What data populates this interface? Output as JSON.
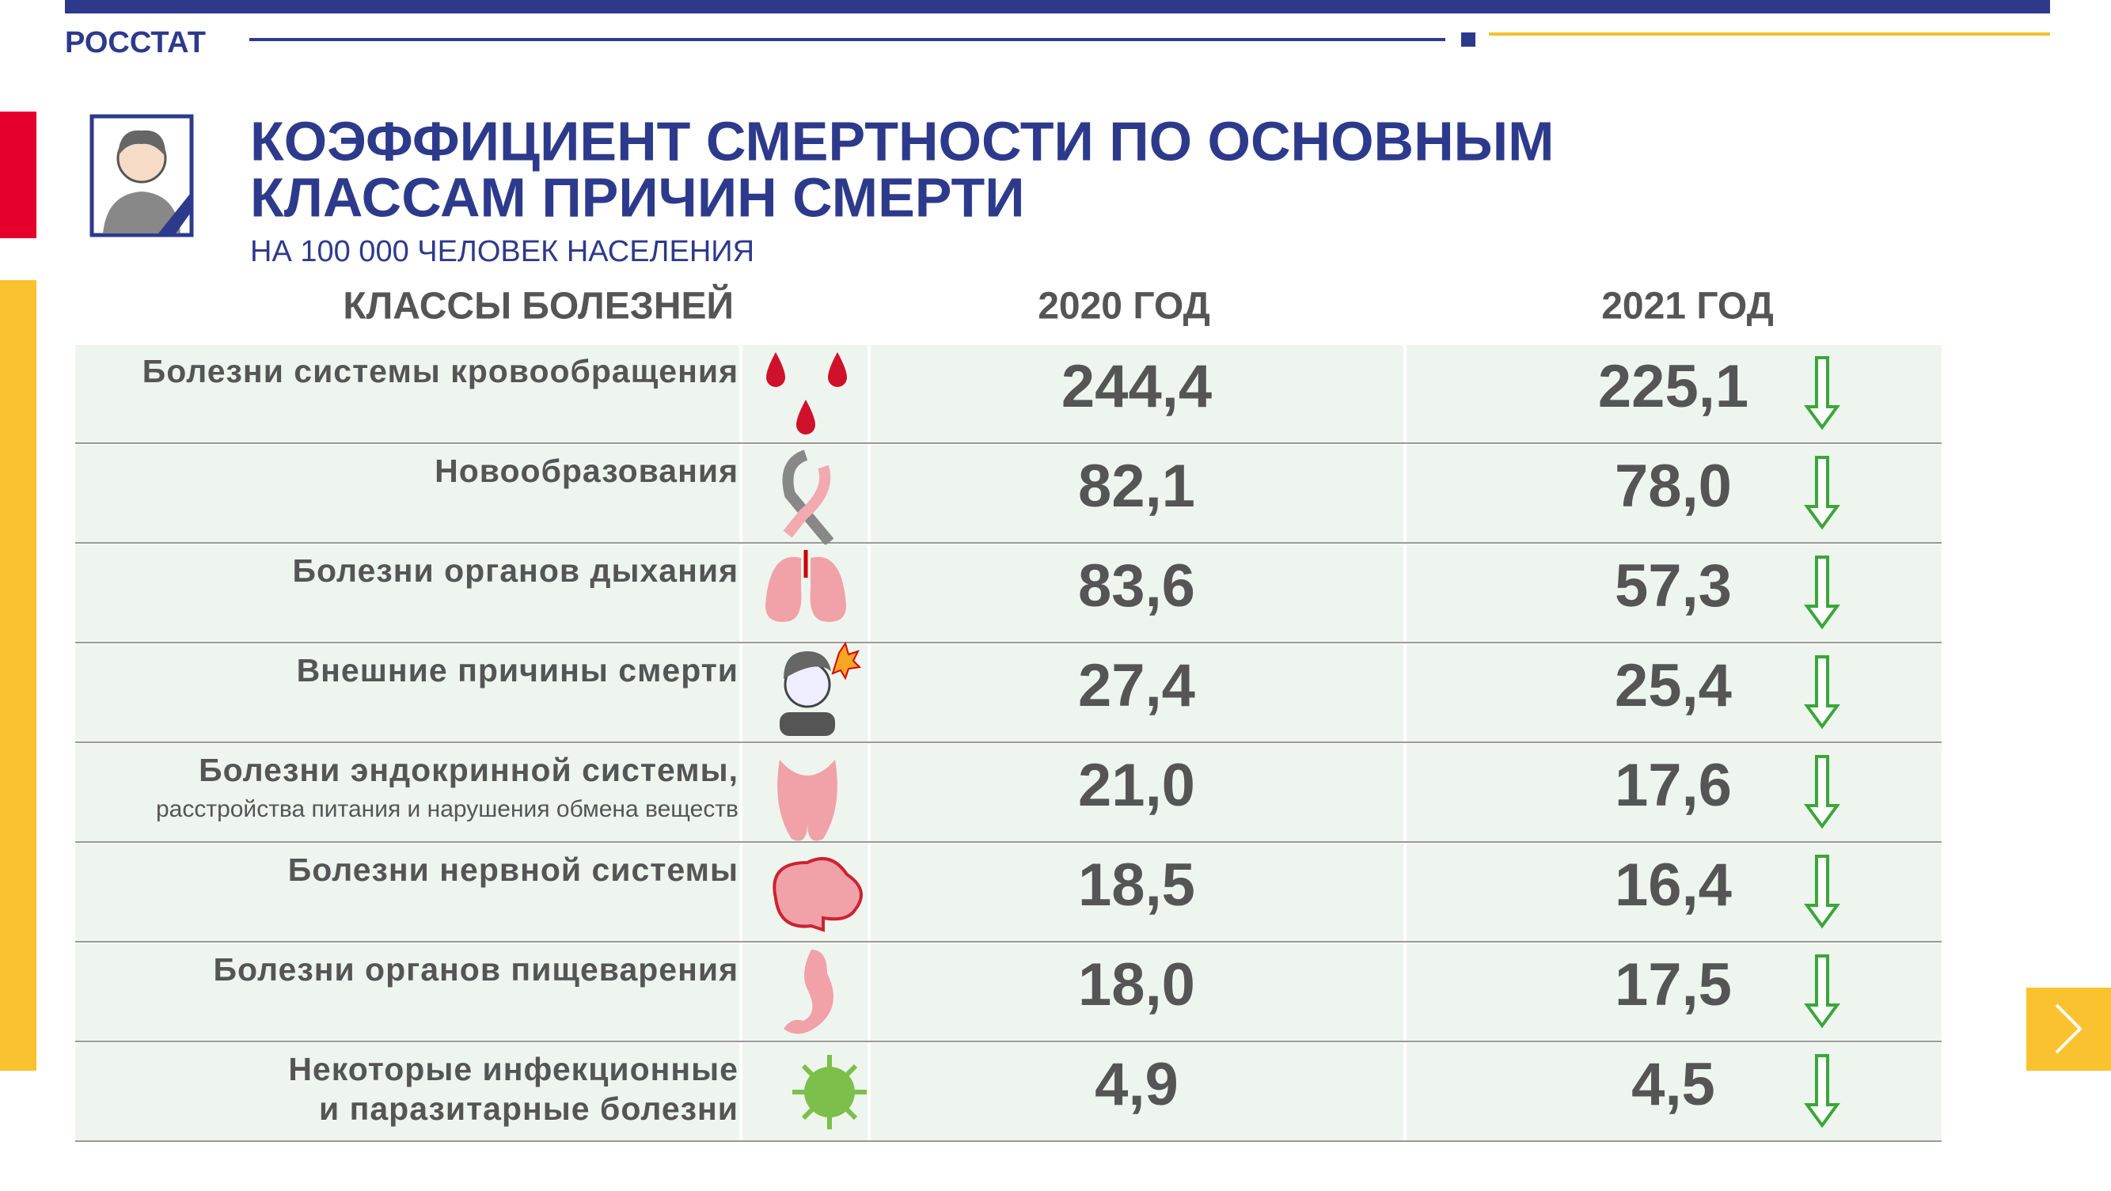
{
  "header": {
    "brand": "РОССТАТ",
    "title": [
      "КОЭФФИЦИЕНТ СМЕРТНОСТИ ПО ОСНОВНЫМ",
      "КЛАССАМ ПРИЧИН СМЕРТИ"
    ],
    "subtitle": "НА 100 000 ЧЕЛОВЕК НАСЕЛЕНИЯ"
  },
  "table": {
    "columns": [
      "КЛАССЫ БОЛЕЗНЕЙ",
      "2020 ГОД",
      "2021 ГОД"
    ],
    "rows": [
      {
        "label": [
          "Болезни системы кровообращения"
        ],
        "v2020": "244,4",
        "v2021": "225,1"
      },
      {
        "label": [
          "Новообразования"
        ],
        "v2020": "82,1",
        "v2021": "78,0"
      },
      {
        "label": [
          "Болезни органов дыхания"
        ],
        "v2020": "83,6",
        "v2021": "57,3"
      },
      {
        "label": [
          "Внешние причины смерти"
        ],
        "v2020": "27,4",
        "v2021": "25,4"
      },
      {
        "label": [
          "Болезни эндокринной системы,"
        ],
        "note": "расстройства питания и нарушения обмена веществ",
        "v2020": "21,0",
        "v2021": "17,6"
      },
      {
        "label": [
          "Болезни нервной системы"
        ],
        "v2020": "18,5",
        "v2021": "16,4"
      },
      {
        "label": [
          "Болезни органов пищеварения"
        ],
        "v2020": "18,0",
        "v2021": "17,5"
      },
      {
        "label": [
          "Некоторые инфекционные",
          "и паразитарные болезни"
        ],
        "v2020": "4,9",
        "v2021": "4,5"
      }
    ]
  }
}
